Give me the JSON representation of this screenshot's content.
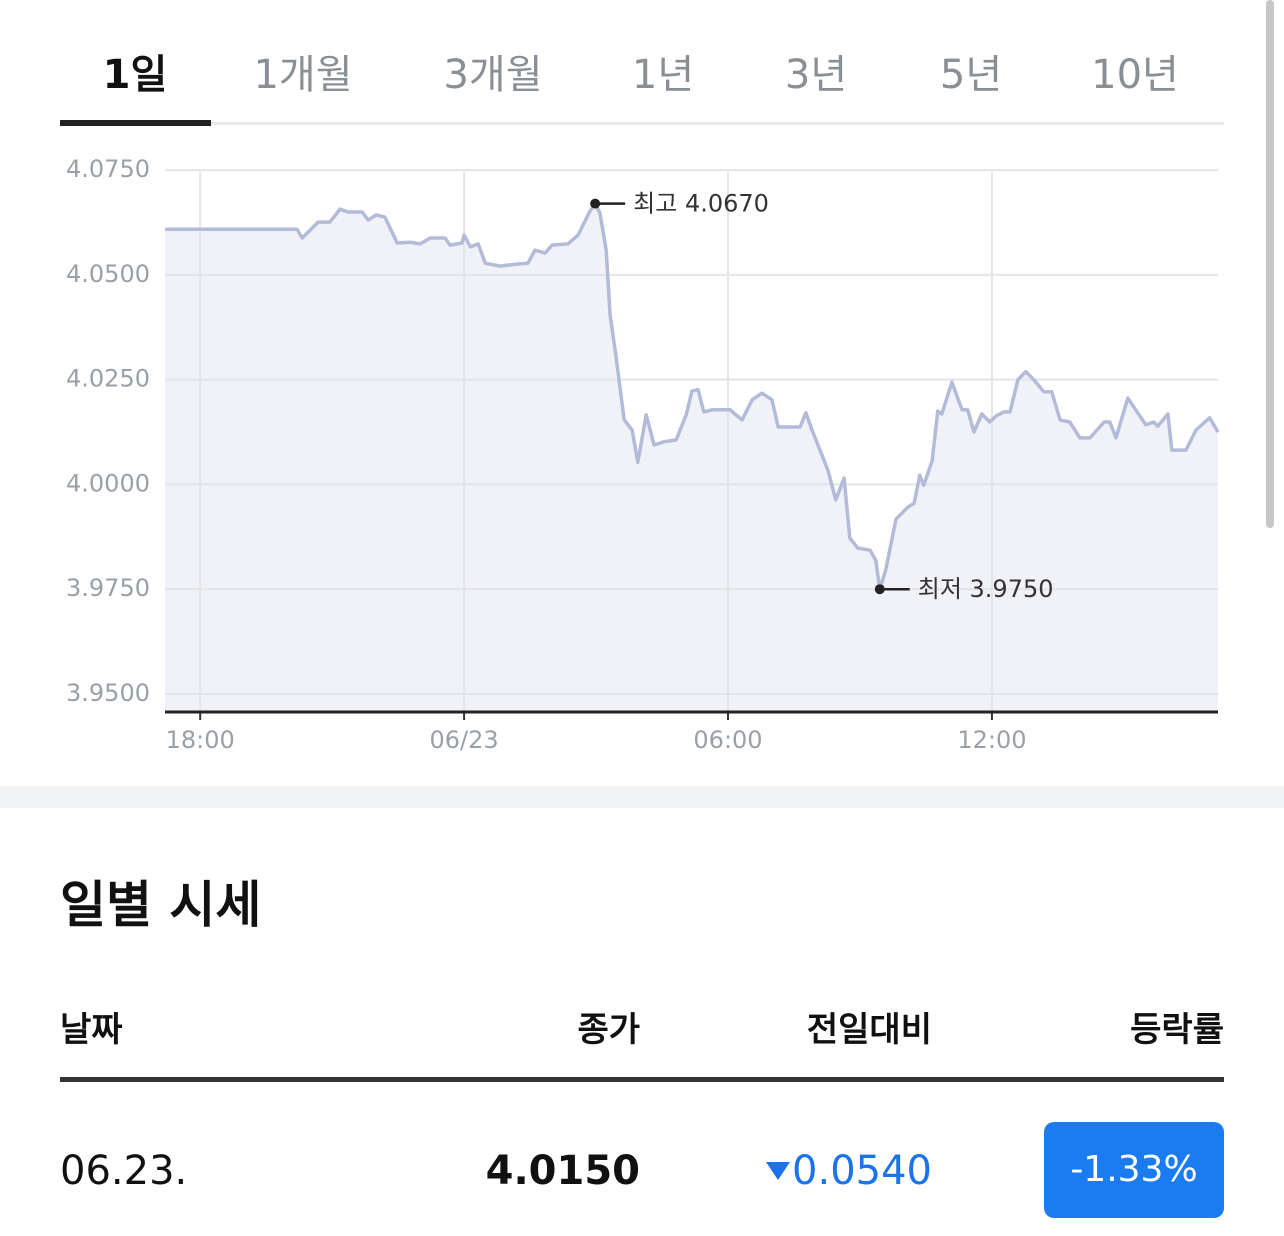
{
  "tabs": [
    "1일",
    "1개월",
    "3개월",
    "1년",
    "3년",
    "5년",
    "10년"
  ],
  "chart_data": {
    "type": "line",
    "x": [
      -6.8,
      -3.8,
      -3.68,
      -3.32,
      -3.05,
      -2.82,
      -2.64,
      -2.32,
      -2.18,
      -2.0,
      -1.8,
      -1.52,
      -1.23,
      -1.0,
      -0.77,
      -0.43,
      -0.32,
      -0.05,
      0.0,
      0.14,
      0.32,
      0.48,
      0.82,
      1.23,
      1.45,
      1.61,
      1.84,
      2.0,
      2.36,
      2.59,
      2.86,
      2.98,
      3.09,
      3.23,
      3.32,
      3.45,
      3.64,
      3.82,
      3.95,
      4.14,
      4.32,
      4.55,
      4.82,
      5.05,
      5.18,
      5.32,
      5.45,
      5.64,
      6.05,
      6.18,
      6.32,
      6.55,
      6.77,
      7.0,
      7.14,
      7.64,
      7.77,
      7.91,
      8.27,
      8.45,
      8.64,
      8.77,
      8.95,
      9.23,
      9.36,
      9.45,
      9.59,
      9.82,
      10.09,
      10.23,
      10.36,
      10.45,
      10.64,
      10.77,
      10.86,
      11.09,
      11.32,
      11.45,
      11.59,
      11.77,
      11.95,
      12.09,
      12.27,
      12.41,
      12.59,
      12.77,
      12.95,
      13.18,
      13.36,
      13.55,
      13.77,
      14.0,
      14.23,
      14.55,
      14.68,
      14.82,
      15.09,
      15.27,
      15.5,
      15.68,
      15.77,
      16.0,
      16.09,
      16.41,
      16.64,
      16.95,
      17.14
    ],
    "values": [
      4.0609,
      4.0609,
      4.0588,
      4.0626,
      4.0626,
      4.0657,
      4.065,
      4.065,
      4.0631,
      4.0643,
      4.0638,
      4.0576,
      4.0578,
      4.0574,
      4.0588,
      4.0588,
      4.0571,
      4.0576,
      4.0595,
      4.0567,
      4.0574,
      4.0528,
      4.0521,
      4.0526,
      4.0528,
      4.0559,
      4.0552,
      4.0571,
      4.0574,
      4.0595,
      4.0652,
      4.067,
      4.0647,
      4.0559,
      4.0404,
      4.0309,
      4.0154,
      4.013,
      4.0053,
      4.0166,
      4.0094,
      4.0102,
      4.0106,
      4.0166,
      4.0223,
      4.0226,
      4.0173,
      4.0178,
      4.0178,
      4.0166,
      4.0154,
      4.0202,
      4.0218,
      4.0202,
      4.0137,
      4.0137,
      4.0171,
      4.013,
      4.0034,
      3.9963,
      4.0015,
      3.9872,
      3.9848,
      3.9843,
      3.9819,
      3.975,
      3.9798,
      3.9917,
      3.9946,
      3.9955,
      4.0022,
      3.9998,
      4.0056,
      4.0175,
      4.0168,
      4.0244,
      4.0178,
      4.0178,
      4.0125,
      4.0168,
      4.0149,
      4.0163,
      4.0173,
      4.0173,
      4.025,
      4.0269,
      4.025,
      4.0221,
      4.0221,
      4.0154,
      4.0149,
      4.0111,
      4.0111,
      4.0149,
      4.0149,
      4.0111,
      4.0206,
      4.0178,
      4.0142,
      4.0149,
      4.0139,
      4.0168,
      4.0082,
      4.0082,
      4.013,
      4.0159,
      4.0125
    ],
    "color": "#b3bbd8",
    "area_color": "#f1f2f7",
    "xlim": [
      -6.8,
      17.14
    ],
    "xticks": [
      {
        "value": -6,
        "label": "18:00"
      },
      {
        "value": 0,
        "label": "06/23"
      },
      {
        "value": 6,
        "label": "06:00"
      },
      {
        "value": 12,
        "label": "12:00"
      }
    ],
    "ylim": [
      3.9457,
      4.0798
    ],
    "yticks": [
      {
        "value": 4.075,
        "label": "4.0750"
      },
      {
        "value": 4.05,
        "label": "4.0500"
      },
      {
        "value": 4.025,
        "label": "4.0250"
      },
      {
        "value": 4.0,
        "label": "4.0000"
      },
      {
        "value": 3.975,
        "label": "3.9750"
      },
      {
        "value": 3.95,
        "label": "3.9500"
      }
    ],
    "grid": true,
    "annotations": [
      {
        "label": "최고 4.0670",
        "x": 2.98,
        "y": 4.067
      },
      {
        "label": "최저 3.9750",
        "x": 9.45,
        "y": 3.975
      }
    ]
  },
  "section_title": "일별 시세",
  "table": {
    "columns": [
      "날짜",
      "종가",
      "전일대비",
      "등락률"
    ],
    "rows": [
      [
        "06.23.",
        "4.0150",
        "0.0540",
        "-1.33%"
      ]
    ]
  }
}
